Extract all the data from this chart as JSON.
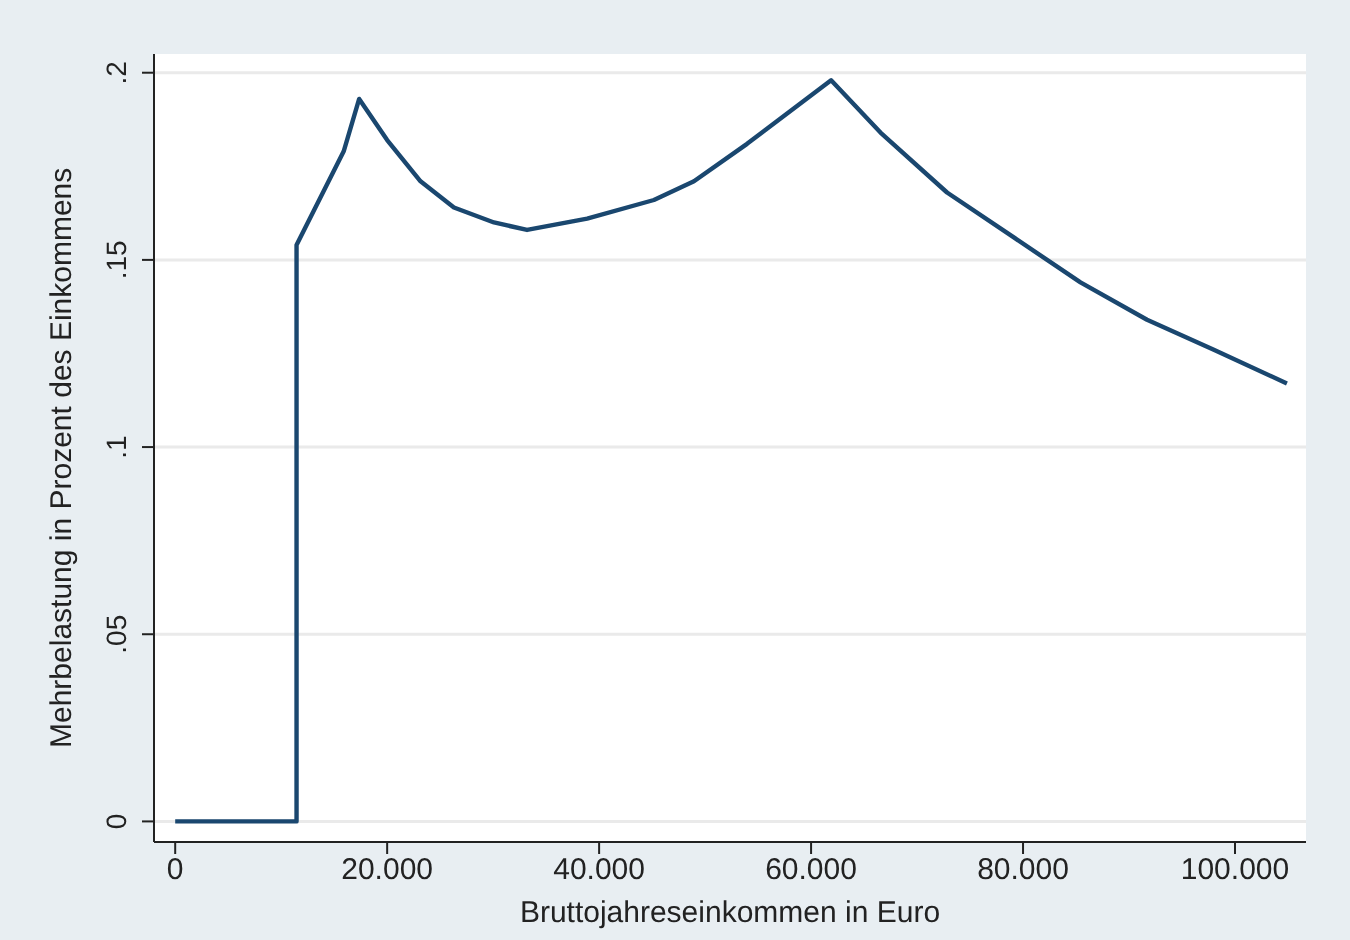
{
  "chart_data": {
    "type": "line",
    "xlabel": "Bruttojahreseinkommen in Euro",
    "ylabel": "Mehrbelastung in Prozent des Einkommens",
    "x": [
      0,
      11450,
      11450,
      15900,
      17360,
      20000,
      23150,
      26300,
      30080,
      33200,
      38870,
      45170,
      48950,
      53960,
      61890,
      66550,
      72830,
      79130,
      85420,
      91700,
      98000,
      104900
    ],
    "series": [
      {
        "color": "#1a476f",
        "values": [
          0,
          0,
          0.154,
          0.179,
          0.193,
          0.182,
          0.171,
          0.164,
          0.16,
          0.158,
          0.161,
          0.166,
          0.171,
          0.181,
          0.198,
          0.184,
          0.168,
          0.156,
          0.144,
          0.134,
          0.126,
          0.117
        ]
      }
    ],
    "xlim": [
      -2000,
      106700
    ],
    "ylim": [
      -0.0055,
      0.205
    ],
    "xticks": [
      {
        "value": 0,
        "label": "0"
      },
      {
        "value": 20000,
        "label": "20.000"
      },
      {
        "value": 40000,
        "label": "40.000"
      },
      {
        "value": 60000,
        "label": "60.000"
      },
      {
        "value": 80000,
        "label": "80.000"
      },
      {
        "value": 100000,
        "label": "100.000"
      }
    ],
    "yticks": [
      {
        "value": 0,
        "label": "0"
      },
      {
        "value": 0.05,
        "label": ".05"
      },
      {
        "value": 0.1,
        "label": ".1"
      },
      {
        "value": 0.15,
        "label": ".15"
      },
      {
        "value": 0.2,
        "label": ".2"
      }
    ],
    "grid": "y",
    "marker": "none",
    "line_style": "solid",
    "legend": false
  }
}
